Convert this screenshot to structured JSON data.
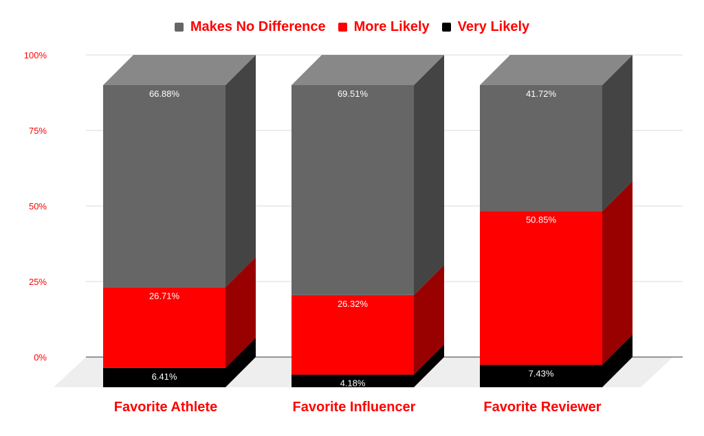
{
  "chart_data": {
    "type": "bar",
    "stacked": true,
    "three_d": true,
    "categories": [
      "Favorite Athlete",
      "Favorite Influencer",
      "Favorite Reviewer"
    ],
    "series": [
      {
        "name": "Very Likely",
        "color": "#000000",
        "values": [
          6.41,
          4.18,
          7.43
        ],
        "labels": [
          "6.41%",
          "4.18%",
          "7.43%"
        ]
      },
      {
        "name": "More Likely",
        "color": "#ff0000",
        "values": [
          26.71,
          26.32,
          50.85
        ],
        "labels": [
          "26.71%",
          "26.32%",
          "50.85%"
        ]
      },
      {
        "name": "Makes No Difference",
        "color": "#666666",
        "values": [
          66.88,
          69.51,
          41.72
        ],
        "labels": [
          "66.88%",
          "69.51%",
          "41.72%"
        ]
      }
    ],
    "legend_order": [
      "Makes No Difference",
      "More Likely",
      "Very Likely"
    ],
    "y_ticks": [
      "0%",
      "25%",
      "50%",
      "75%",
      "100%"
    ],
    "ylim": [
      0,
      100
    ],
    "legend_position": "top",
    "grid": true,
    "title": "",
    "xlabel": "",
    "ylabel": ""
  },
  "colors": {
    "accent": "#ff0000",
    "gridline": "#d9d9d9",
    "floor": "#eeeeee",
    "side_shades": {
      "#000000": "#000000",
      "#ff0000": "#990000",
      "#666666": "#444444"
    },
    "top_shade": "#888888"
  }
}
